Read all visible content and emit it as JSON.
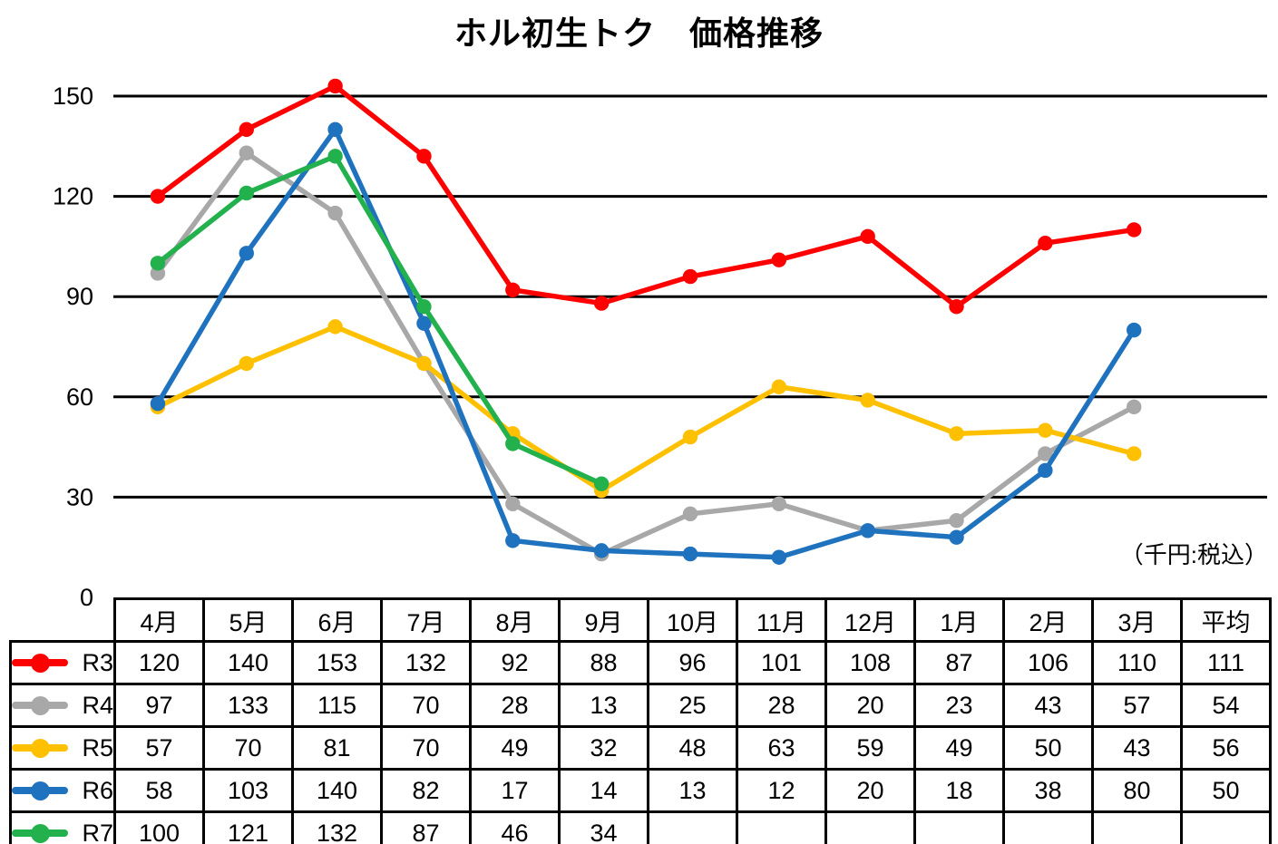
{
  "title": "ホル初生トク　価格推移",
  "unit_note": "（千円:税込）",
  "chart_data": {
    "type": "line",
    "title": "ホル初生トク　価格推移",
    "unit_note": "（千円:税込）",
    "categories": [
      "4月",
      "5月",
      "6月",
      "7月",
      "8月",
      "9月",
      "10月",
      "11月",
      "12月",
      "1月",
      "2月",
      "3月"
    ],
    "avg_column_label": "平均",
    "y_ticks": [
      0,
      30,
      60,
      90,
      120,
      150
    ],
    "ylim": [
      0,
      160
    ],
    "grid": true,
    "gridline_color": "#000000",
    "legend_position": "table-left-column",
    "series": [
      {
        "name": "R3",
        "color": "#FE0000",
        "values": [
          120,
          140,
          153,
          132,
          92,
          88,
          96,
          101,
          108,
          87,
          106,
          110
        ],
        "average": 111
      },
      {
        "name": "R4",
        "color": "#A8A8A8",
        "values": [
          97,
          133,
          115,
          70,
          28,
          13,
          25,
          28,
          20,
          23,
          43,
          57
        ],
        "average": 54
      },
      {
        "name": "R5",
        "color": "#FFC000",
        "values": [
          57,
          70,
          81,
          70,
          49,
          32,
          48,
          63,
          59,
          49,
          50,
          43
        ],
        "average": 56
      },
      {
        "name": "R6",
        "color": "#1F72BD",
        "values": [
          58,
          103,
          140,
          82,
          17,
          14,
          13,
          12,
          20,
          18,
          38,
          80
        ],
        "average": 50
      },
      {
        "name": "R7",
        "color": "#22B14C",
        "values": [
          100,
          121,
          132,
          87,
          46,
          34,
          null,
          null,
          null,
          null,
          null,
          null
        ],
        "average": null
      }
    ]
  }
}
